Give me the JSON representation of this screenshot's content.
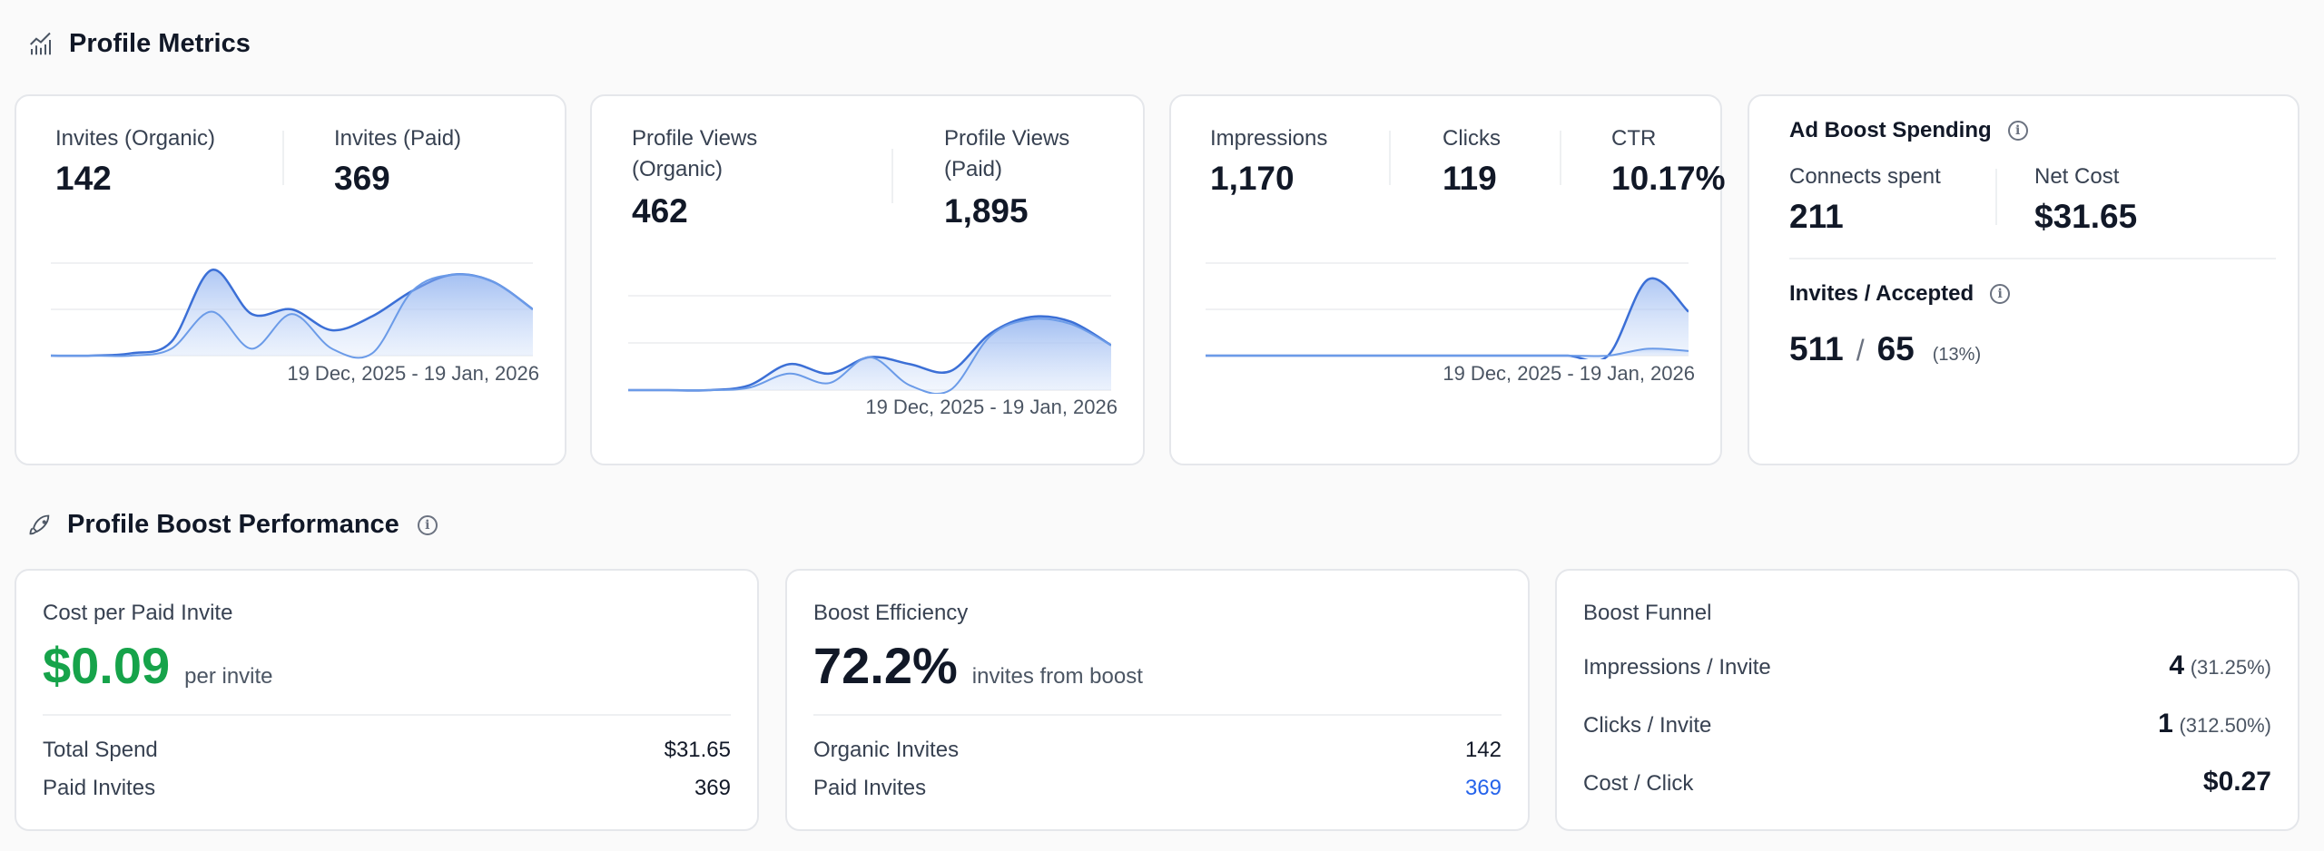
{
  "sections": {
    "metrics_title": "Profile Metrics",
    "boost_title": "Profile Boost Performance"
  },
  "colors": {
    "primary": "#3b6fd6",
    "secondary": "#6b9be8",
    "green": "#16a34a",
    "blue": "#2563eb"
  },
  "date_range": "19 Dec, 2025 - 19 Jan, 2026",
  "invites": {
    "organic_label": "Invites (Organic)",
    "organic": "142",
    "paid_label": "Invites (Paid)",
    "paid": "369"
  },
  "views": {
    "organic_label_1": "Profile Views",
    "organic_label_2": "(Organic)",
    "organic": "462",
    "paid_label_1": "Profile Views",
    "paid_label_2": "(Paid)",
    "paid": "1,895"
  },
  "impr": {
    "impressions_label": "Impressions",
    "impressions": "1,170",
    "clicks_label": "Clicks",
    "clicks": "119",
    "ctr_label": "CTR",
    "ctr": "10.17%"
  },
  "ad": {
    "title": "Ad Boost Spending",
    "connects_label": "Connects spent",
    "connects": "211",
    "net_label": "Net Cost",
    "net": "$31.65",
    "ia_title": "Invites / Accepted",
    "invites": "511",
    "sep": "/",
    "accepted": "65",
    "pct": "(13%)"
  },
  "cost": {
    "title": "Cost per Paid Invite",
    "value": "$0.09",
    "unit": "per invite",
    "rows": [
      {
        "label": "Total Spend",
        "value": "$31.65"
      },
      {
        "label": "Paid Invites",
        "value": "369"
      }
    ]
  },
  "eff": {
    "title": "Boost Efficiency",
    "value": "72.2%",
    "unit": "invites from boost",
    "rows": [
      {
        "label": "Organic Invites",
        "value": "142"
      },
      {
        "label": "Paid Invites",
        "value": "369"
      }
    ]
  },
  "funnel": {
    "title": "Boost Funnel",
    "rows": [
      {
        "label": "Impressions / Invite",
        "value": "4",
        "pct": "(31.25%)"
      },
      {
        "label": "Clicks / Invite",
        "value": "1",
        "pct": "(312.50%)"
      },
      {
        "label": "Cost / Click",
        "value": "$0.27",
        "pct": ""
      }
    ]
  },
  "chart_data": [
    {
      "type": "area",
      "name": "invites",
      "ylim": [
        0,
        2
      ],
      "series": [
        {
          "name": "Paid",
          "values": [
            0,
            0,
            0.05,
            0.3,
            1.85,
            0.9,
            1.0,
            0.55,
            0.85,
            1.4,
            1.75,
            1.6,
            1.0
          ]
        },
        {
          "name": "Organic",
          "values": [
            0,
            0,
            0,
            0.15,
            0.95,
            0.15,
            0.9,
            0.15,
            0.05,
            1.4,
            1.75,
            1.6,
            1.0
          ]
        }
      ]
    },
    {
      "type": "area",
      "name": "views",
      "ylim": [
        0,
        2
      ],
      "series": [
        {
          "name": "Paid",
          "values": [
            0,
            0,
            0,
            0.1,
            0.55,
            0.35,
            0.7,
            0.55,
            0.4,
            1.2,
            1.55,
            1.45,
            0.95
          ]
        },
        {
          "name": "Organic",
          "values": [
            0,
            0,
            0,
            0.05,
            0.35,
            0.15,
            0.7,
            0.1,
            0,
            1.15,
            1.5,
            1.4,
            0.95
          ]
        }
      ]
    },
    {
      "type": "area",
      "name": "impressions",
      "ylim": [
        0,
        2
      ],
      "series": [
        {
          "name": "Impressions",
          "values": [
            0,
            0,
            0,
            0,
            0,
            0,
            0,
            0,
            0,
            0,
            0,
            1.65,
            0.95
          ]
        },
        {
          "name": "Clicks",
          "values": [
            0,
            0,
            0,
            0,
            0,
            0,
            0,
            0,
            0,
            0,
            0,
            0.15,
            0.1
          ]
        }
      ]
    }
  ]
}
